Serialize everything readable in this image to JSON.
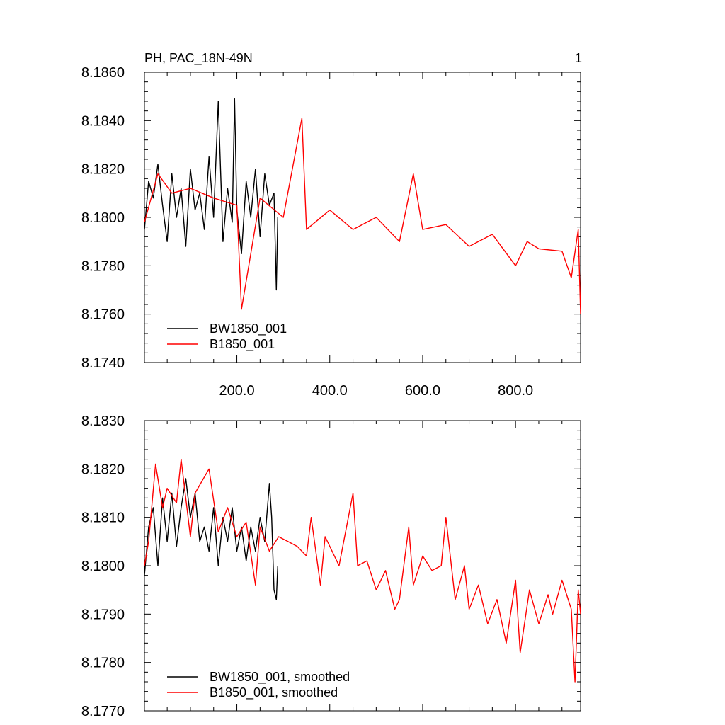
{
  "page_label": "1",
  "chart_data": [
    {
      "type": "line",
      "title": "PH, PAC_18N-49N",
      "xlabel": "",
      "ylabel": "",
      "xlim": [
        1,
        940
      ],
      "ylim": [
        8.174,
        8.186
      ],
      "x_ticks": [
        200,
        400,
        600,
        800
      ],
      "x_tick_labels": [
        "200.0",
        "400.0",
        "600.0",
        "800.0"
      ],
      "y_ticks": [
        8.174,
        8.176,
        8.178,
        8.18,
        8.182,
        8.184,
        8.186
      ],
      "y_tick_labels": [
        "8.1740",
        "8.1760",
        "8.1780",
        "8.1800",
        "8.1820",
        "8.1840",
        "8.1860"
      ],
      "legend_position": "bottom-left",
      "grid": false,
      "series": [
        {
          "name": "BW1850_001",
          "color": "#000000",
          "x": [
            1,
            10,
            20,
            30,
            40,
            50,
            60,
            70,
            80,
            90,
            100,
            110,
            120,
            130,
            140,
            150,
            160,
            170,
            180,
            190,
            195,
            200,
            210,
            220,
            230,
            240,
            250,
            260,
            270,
            280,
            285,
            288
          ],
          "values": [
            8.1795,
            8.1815,
            8.1808,
            8.1822,
            8.1805,
            8.179,
            8.1818,
            8.18,
            8.1812,
            8.1788,
            8.182,
            8.1803,
            8.181,
            8.1795,
            8.1825,
            8.18,
            8.1848,
            8.179,
            8.1812,
            8.1798,
            8.1849,
            8.1803,
            8.1785,
            8.1815,
            8.18,
            8.182,
            8.1792,
            8.1818,
            8.1805,
            8.181,
            8.177,
            8.18
          ]
        },
        {
          "name": "B1850_001",
          "color": "#ff0000",
          "x": [
            1,
            30,
            60,
            100,
            150,
            200,
            210,
            250,
            300,
            340,
            350,
            400,
            450,
            500,
            550,
            580,
            600,
            650,
            700,
            750,
            800,
            825,
            850,
            900,
            920,
            935,
            940
          ],
          "values": [
            8.1798,
            8.1818,
            8.181,
            8.1812,
            8.1808,
            8.1805,
            8.1762,
            8.1808,
            8.18,
            8.1841,
            8.1795,
            8.1803,
            8.1795,
            8.18,
            8.179,
            8.1818,
            8.1795,
            8.1797,
            8.1788,
            8.1793,
            8.178,
            8.179,
            8.1787,
            8.1786,
            8.1775,
            8.1795,
            8.176
          ]
        }
      ]
    },
    {
      "type": "line",
      "title": "",
      "xlabel": "",
      "ylabel": "",
      "xlim": [
        1,
        940
      ],
      "ylim": [
        8.177,
        8.183
      ],
      "x_ticks": [
        200,
        400,
        600,
        800
      ],
      "x_tick_labels": [],
      "y_ticks": [
        8.177,
        8.178,
        8.179,
        8.18,
        8.181,
        8.182,
        8.183
      ],
      "y_tick_labels": [
        "8.1770",
        "8.1780",
        "8.1790",
        "8.1800",
        "8.1810",
        "8.1820",
        "8.1830"
      ],
      "legend_position": "bottom-left",
      "grid": false,
      "series": [
        {
          "name": "BW1850_001, smoothed",
          "color": "#000000",
          "x": [
            1,
            10,
            20,
            30,
            40,
            50,
            60,
            70,
            80,
            90,
            100,
            110,
            120,
            130,
            140,
            150,
            160,
            170,
            180,
            190,
            200,
            210,
            220,
            230,
            240,
            250,
            260,
            270,
            275,
            280,
            285,
            288
          ],
          "values": [
            8.1798,
            8.1808,
            8.1812,
            8.18,
            8.1814,
            8.1805,
            8.1815,
            8.1804,
            8.1812,
            8.1818,
            8.181,
            8.1815,
            8.1805,
            8.1808,
            8.1803,
            8.1812,
            8.18,
            8.181,
            8.1805,
            8.1812,
            8.1803,
            8.1808,
            8.1801,
            8.1808,
            8.1803,
            8.181,
            8.1805,
            8.1817,
            8.181,
            8.1795,
            8.1793,
            8.18
          ]
        },
        {
          "name": "B1850_001, smoothed",
          "color": "#ff0000",
          "x": [
            1,
            10,
            25,
            40,
            50,
            70,
            80,
            100,
            110,
            140,
            160,
            180,
            200,
            220,
            240,
            250,
            270,
            290,
            310,
            330,
            350,
            360,
            380,
            390,
            420,
            450,
            460,
            480,
            500,
            520,
            540,
            550,
            570,
            580,
            600,
            620,
            640,
            650,
            670,
            690,
            700,
            720,
            740,
            760,
            780,
            800,
            810,
            830,
            850,
            870,
            880,
            900,
            920,
            928,
            935,
            940
          ],
          "values": [
            8.18,
            8.1805,
            8.1821,
            8.1812,
            8.1816,
            8.1813,
            8.1822,
            8.1806,
            8.1815,
            8.182,
            8.1807,
            8.1812,
            8.1806,
            8.1809,
            8.1796,
            8.1808,
            8.1803,
            8.1806,
            8.1805,
            8.1804,
            8.1802,
            8.181,
            8.1796,
            8.1806,
            8.18,
            8.1815,
            8.18,
            8.1801,
            8.1795,
            8.1799,
            8.1791,
            8.1793,
            8.1808,
            8.1796,
            8.1802,
            8.1799,
            8.18,
            8.181,
            8.1793,
            8.18,
            8.1791,
            8.1796,
            8.1788,
            8.1793,
            8.1784,
            8.1797,
            8.1782,
            8.1795,
            8.1788,
            8.1794,
            8.179,
            8.1797,
            8.1791,
            8.1776,
            8.1795,
            8.179
          ]
        }
      ]
    }
  ]
}
